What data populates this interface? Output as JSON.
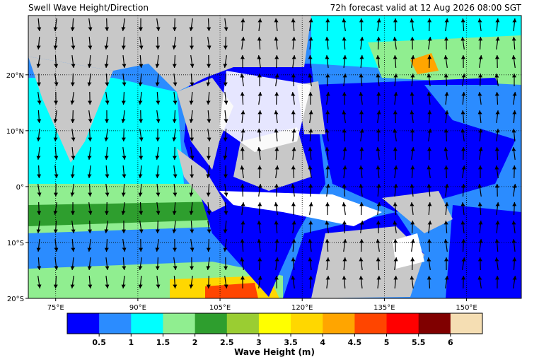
{
  "header": {
    "left_title": "Swell Wave Height/Direction",
    "right_title": "72h forecast valid at 12 Aug 2026 08:00 SGT"
  },
  "map": {
    "xlim": [
      70,
      160
    ],
    "ylim": [
      -20,
      30.6
    ],
    "xticks": [
      {
        "value": 75,
        "label": "75°E"
      },
      {
        "value": 90,
        "label": "90°E"
      },
      {
        "value": 105,
        "label": "105°E"
      },
      {
        "value": 120,
        "label": "120°E"
      },
      {
        "value": 135,
        "label": "135°E"
      },
      {
        "value": 150,
        "label": "150°E"
      }
    ],
    "yticks": [
      {
        "value": 20,
        "label": "20°N"
      },
      {
        "value": 10,
        "label": "10°N"
      },
      {
        "value": 0,
        "label": "0°"
      },
      {
        "value": -10,
        "label": "10°S"
      },
      {
        "value": -20,
        "label": "20°S"
      }
    ]
  },
  "colorbar": {
    "lim": [
      0,
      6.5
    ],
    "colors": [
      "#0000ff",
      "#2b8cff",
      "#00ffff",
      "#90ee90",
      "#2e9e2e",
      "#9acd32",
      "#ffff00",
      "#ffd700",
      "#ffa500",
      "#ff4500",
      "#ff0000",
      "#800000",
      "#f5deb3"
    ],
    "ticks": [
      0.5,
      1,
      1.5,
      2,
      2.5,
      3,
      3.5,
      4,
      4.5,
      5,
      5.5,
      6
    ],
    "label": "Wave Height (m)"
  }
}
